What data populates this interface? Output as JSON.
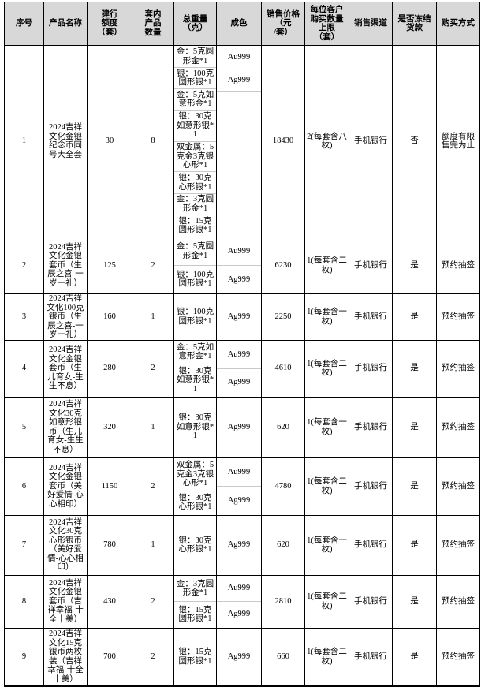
{
  "colors": {
    "header_bg": "#d8d8d8",
    "grid_line": "#c9c9c9",
    "border": "#000000",
    "cell_bg": "#ffffff"
  },
  "table": {
    "columns": [
      "序号",
      "产品名称",
      "建行\n额度\n（套）",
      "套内\n产品\n数量",
      "总重量\n（克）",
      "成色",
      "销售价格\n（元\n/套）",
      "每位客户\n购买数量\n上限\n（套）",
      "销售渠道",
      "是否冻结\n货款",
      "购买方式"
    ],
    "rows": [
      {
        "seq": "1",
        "name": "2024吉祥文化金银纪念币同号大全套",
        "quota": "30",
        "count": "8",
        "weights": [
          "金：5克圆形金*1",
          "银：100克圆形银*1",
          "金：5克如意形金*1",
          "银：30克如意形银*1",
          "双金属：5克金3克银心形*1",
          "银：30克心形银*1",
          "金：3克圆形金*1",
          "银：15克圆形银*1"
        ],
        "fineness": [
          "Au999",
          "Ag999"
        ],
        "price": "18430",
        "limit": "2(每套含八枚)",
        "channel": "手机银行",
        "frozen": "否",
        "purchase": "额度有限售完为止"
      },
      {
        "seq": "2",
        "name": "2024吉祥文化金银套币（生辰之喜-一岁一礼）",
        "quota": "125",
        "count": "2",
        "weights": [
          "金：5克圆形金*1",
          "银：100克圆形银*1"
        ],
        "fineness": [
          "Au999",
          "Ag999"
        ],
        "price": "6230",
        "limit": "1(每套含二枚)",
        "channel": "手机银行",
        "frozen": "是",
        "purchase": "预约抽签"
      },
      {
        "seq": "3",
        "name": "2024吉祥文化100克银币（生辰之喜-一岁一礼）",
        "quota": "160",
        "count": "1",
        "weights": [
          "银：100克圆形银*1"
        ],
        "fineness": [
          "Ag999"
        ],
        "price": "2250",
        "limit": "1(每套含一枚)",
        "channel": "手机银行",
        "frozen": "是",
        "purchase": "预约抽签"
      },
      {
        "seq": "4",
        "name": "2024吉祥文化金银套币（生儿育女-生生不息）",
        "quota": "280",
        "count": "2",
        "weights": [
          "金：5克如意形金*1",
          "银：30克如意形银*1"
        ],
        "fineness": [
          "Au999",
          "Ag999"
        ],
        "price": "4610",
        "limit": "1(每套含二枚)",
        "channel": "手机银行",
        "frozen": "是",
        "purchase": "预约抽签"
      },
      {
        "seq": "5",
        "name": "2024吉祥文化30克如意形银币（生儿育女-生生不息）",
        "quota": "320",
        "count": "1",
        "weights": [
          "银：30克如意形银*1"
        ],
        "fineness": [
          "Ag999"
        ],
        "price": "620",
        "limit": "1(每套含一枚)",
        "channel": "手机银行",
        "frozen": "是",
        "purchase": "预约抽签"
      },
      {
        "seq": "6",
        "name": "2024吉祥文化金银套币（美好爱情-心心相印）",
        "quota": "1150",
        "count": "2",
        "weights": [
          "双金属：5克金3克银心形*1",
          "银：30克心形银*1"
        ],
        "fineness": [
          "Au999",
          "Ag999"
        ],
        "price": "4780",
        "limit": "1(每套含二枚)",
        "channel": "手机银行",
        "frozen": "是",
        "purchase": "预约抽签"
      },
      {
        "seq": "7",
        "name": "2024吉祥文化30克心形银币（美好爱情-心心相印）",
        "quota": "780",
        "count": "1",
        "weights": [
          "银：30克心形银*1"
        ],
        "fineness": [
          "Ag999"
        ],
        "price": "620",
        "limit": "1(每套含一枚)",
        "channel": "手机银行",
        "frozen": "是",
        "purchase": "预约抽签"
      },
      {
        "seq": "8",
        "name": "2024吉祥文化金银套币（吉祥幸福-十全十美）",
        "quota": "430",
        "count": "2",
        "weights": [
          "金：3克圆形金*1",
          "银：15克圆形银*1"
        ],
        "fineness": [
          "Au999",
          "Ag999"
        ],
        "price": "2810",
        "limit": "1(每套含二枚)",
        "channel": "手机银行",
        "frozen": "是",
        "purchase": "预约抽签"
      },
      {
        "seq": "9",
        "name": "2024吉祥文化15克银币两枚装（吉祥幸福-十全十美）",
        "quota": "700",
        "count": "2",
        "weights": [
          "银：15克圆形银*1"
        ],
        "fineness": [
          "Ag999"
        ],
        "price": "660",
        "limit": "1(每套含二枚)",
        "channel": "手机银行",
        "frozen": "是",
        "purchase": "预约抽签"
      }
    ]
  }
}
